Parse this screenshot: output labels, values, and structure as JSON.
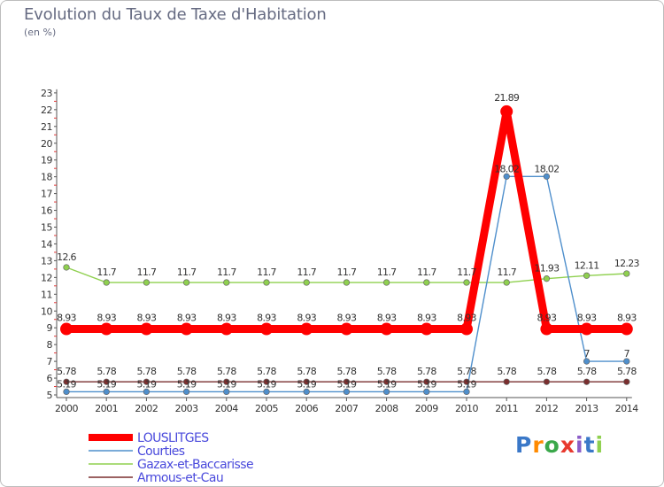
{
  "chart_data": {
    "type": "line",
    "title": "Evolution du Taux de Taxe d'Habitation",
    "subtitle": "(en %)",
    "categories": [
      "2000",
      "2001",
      "2002",
      "2003",
      "2004",
      "2005",
      "2006",
      "2007",
      "2008",
      "2009",
      "2010",
      "2011",
      "2012",
      "2013",
      "2014"
    ],
    "ylim": [
      5,
      23
    ],
    "y_ticks": [
      "5",
      "6",
      "7",
      "8",
      "9",
      "10",
      "11",
      "12",
      "13",
      "14",
      "15",
      "16",
      "17",
      "18",
      "19",
      "20",
      "21",
      "22",
      "23"
    ],
    "grid": false,
    "legend_position": "bottom-left",
    "series": [
      {
        "name": "LOUSLITGES",
        "color": "#ff0000",
        "values": [
          8.93,
          8.93,
          8.93,
          8.93,
          8.93,
          8.93,
          8.93,
          8.93,
          8.93,
          8.93,
          8.93,
          21.89,
          8.93,
          8.93,
          8.93
        ],
        "labels": [
          "8.93",
          "8.93",
          "8.93",
          "8.93",
          "8.93",
          "8.93",
          "8.93",
          "8.93",
          "8.93",
          "8.93",
          "8.93",
          "21.89",
          "8.93",
          "8.93",
          "8.93"
        ]
      },
      {
        "name": "Courties",
        "color": "#4f8fcc",
        "values": [
          5.19,
          5.19,
          5.19,
          5.19,
          5.19,
          5.19,
          5.19,
          5.19,
          5.19,
          5.19,
          5.19,
          18.02,
          18.02,
          7,
          7
        ],
        "labels": [
          "5.19",
          "5.19",
          "5.19",
          "5.19",
          "5.19",
          "5.19",
          "5.19",
          "5.19",
          "5.19",
          "5.19",
          "5.19",
          "18.02",
          "18.02",
          "7",
          "7"
        ]
      },
      {
        "name": "Gazax-et-Baccarisse",
        "color": "#8fd04f",
        "values": [
          12.6,
          11.7,
          11.7,
          11.7,
          11.7,
          11.7,
          11.7,
          11.7,
          11.7,
          11.7,
          11.7,
          11.7,
          11.93,
          12.11,
          12.23
        ],
        "labels": [
          "12.6",
          "11.7",
          "11.7",
          "11.7",
          "11.7",
          "11.7",
          "11.7",
          "11.7",
          "11.7",
          "11.7",
          "11.7",
          "11.7",
          "11.93",
          "12.11",
          "12.23"
        ]
      },
      {
        "name": "Armous-et-Cau",
        "color": "#7a2e2e",
        "values": [
          5.78,
          5.78,
          5.78,
          5.78,
          5.78,
          5.78,
          5.78,
          5.78,
          5.78,
          5.78,
          5.78,
          5.78,
          5.78,
          5.78,
          5.78
        ],
        "labels": [
          "5.78",
          "5.78",
          "5.78",
          "5.78",
          "5.78",
          "5.78",
          "5.78",
          "5.78",
          "5.78",
          "5.78",
          "5.78",
          "5.78",
          "5.78",
          "5.78",
          "5.78"
        ]
      }
    ]
  },
  "logo": {
    "letters": [
      "P",
      "r",
      "o",
      "x",
      "i",
      "t",
      "i"
    ],
    "colors": [
      "#3a78c8",
      "#ff8a00",
      "#3aa84a",
      "#e8392e",
      "#8b5cc8",
      "#3a78c8",
      "#8fd04f"
    ]
  }
}
